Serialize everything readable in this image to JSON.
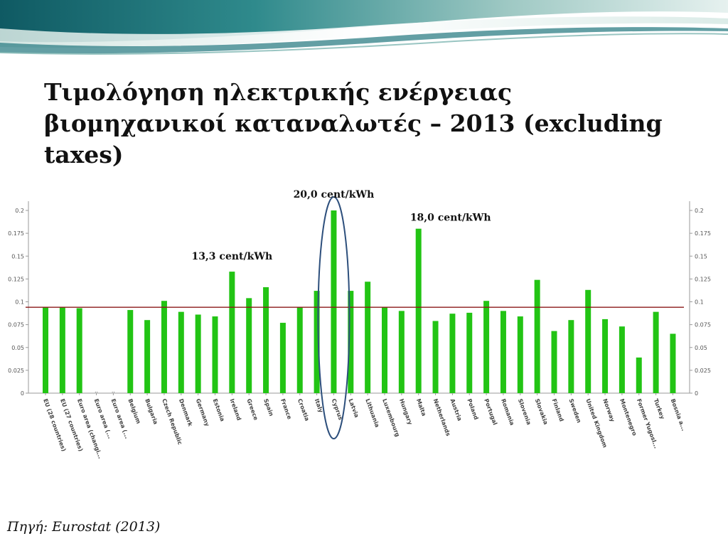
{
  "slide": {
    "title": "Τιμολόγηση ηλεκτρικής ενέργειας βιομηχανικοί καταναλωτές – 2013 (excluding taxes)",
    "source": "Πηγή: Eurostat (2013)"
  },
  "colors": {
    "bar": "#22c414",
    "average_line": "#8b1a1a",
    "highlight_ellipse": "#2d4f7c"
  },
  "chart_data": {
    "type": "bar",
    "categories": [
      "EU (28 countries)",
      "EU (27 countries)",
      "Euro area (changi...",
      "Euro area (...",
      "Euro area (...",
      "Belgium",
      "Bulgaria",
      "Czech Republic",
      "Denmark",
      "Germany",
      "Estonia",
      "Ireland",
      "Greece",
      "Spain",
      "France",
      "Croatia",
      "Italy",
      "Cyprus",
      "Latvia",
      "Lithuania",
      "Luxembourg",
      "Hungary",
      "Malta",
      "Netherlands",
      "Austria",
      "Poland",
      "Portugal",
      "Romania",
      "Slovenia",
      "Slovakia",
      "Finland",
      "Sweden",
      "United Kingdom",
      "Norway",
      "Montenegro",
      "Former Yugosl...",
      "Turkey",
      "Bosnia a..."
    ],
    "values": [
      0.094,
      0.094,
      0.093,
      null,
      null,
      0.091,
      0.08,
      0.101,
      0.089,
      0.086,
      0.084,
      0.133,
      0.104,
      0.116,
      0.077,
      0.094,
      0.112,
      0.2,
      0.112,
      0.122,
      0.094,
      0.09,
      0.18,
      0.079,
      0.087,
      0.088,
      0.101,
      0.09,
      0.084,
      0.124,
      0.068,
      0.08,
      0.113,
      0.081,
      0.073,
      0.039,
      0.089,
      0.065
    ],
    "reference_line": 0.094,
    "ylim": [
      0,
      0.2
    ],
    "yticks": [
      "0",
      "0.025",
      "0.05",
      "0.075",
      "0.1",
      "0.125",
      "0.15",
      "0.175",
      "0.2"
    ],
    "annotations": [
      {
        "text": "20,0 cent/kWh",
        "category": "Cyprus"
      },
      {
        "text": "18,0 cent/kWh",
        "category": "Malta"
      },
      {
        "text": "13,3 cent/kWh",
        "category": "Ireland"
      }
    ],
    "highlight": "Cyprus",
    "grid": false
  }
}
